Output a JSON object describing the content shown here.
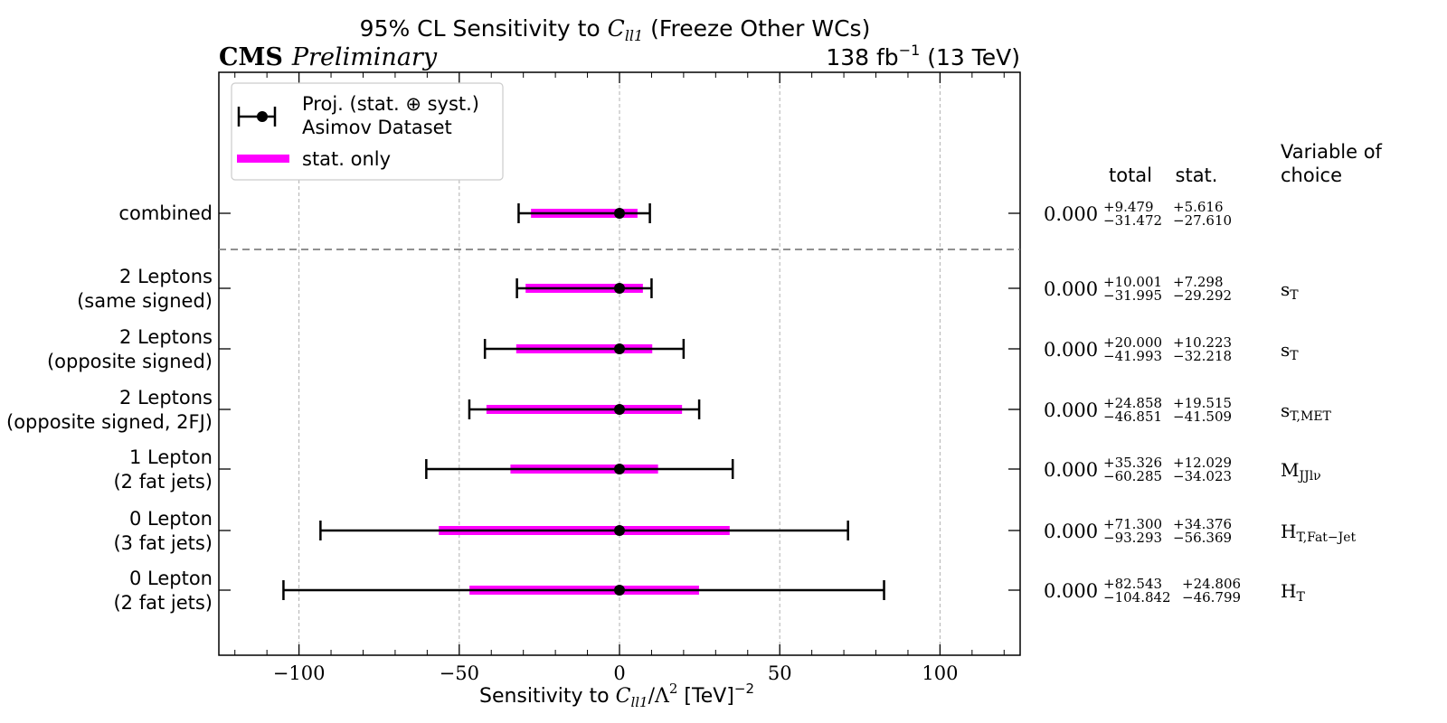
{
  "chart_data": {
    "type": "errorbar",
    "title_pre": "95% CL Sensitivity to ",
    "title_var": "C",
    "title_sub": "ll1",
    "title_post": " (Freeze Other WCs)",
    "experiment": "CMS",
    "status": "Preliminary",
    "lumi_value": "138 fb",
    "lumi_exp": "−1",
    "lumi_energy": " (13 TeV)",
    "xlabel_pre": "Sensitivity to ",
    "xlabel_var": "C",
    "xlabel_sub": "ll1",
    "xlabel_mid": "/Λ",
    "xlabel_exp": "2",
    "xlabel_unit": " [TeV]",
    "xlabel_unit_exp": "−2",
    "xlim": [
      -125,
      125
    ],
    "xticks": [
      -100,
      -50,
      0,
      50,
      100
    ],
    "xtick_labels": [
      "−100",
      "−50",
      "0",
      "50",
      "100"
    ],
    "grid": true,
    "legend": {
      "placement": "top-left",
      "entries": [
        {
          "label_line1": "Proj. (stat. ⊕ syst.)",
          "label_line2": "Asimov Dataset",
          "color": "#000000"
        },
        {
          "label_line1": "stat. only",
          "color": "#ff00ff"
        }
      ]
    },
    "table_headers": {
      "total": "total",
      "stat": "stat.",
      "variable_line1": "Variable of",
      "variable_line2": "choice"
    },
    "rows": [
      {
        "label_line1": "combined",
        "label_line2": "",
        "center": 0.0,
        "center_text": "0.000",
        "total_up": 9.479,
        "total_down": 31.472,
        "stat_up": 5.616,
        "stat_down": 27.61,
        "total_up_text": "+9.479",
        "total_down_text": "−31.472",
        "stat_up_text": "+5.616",
        "stat_down_text": "−27.610",
        "variable": "",
        "variable_sub": ""
      },
      {
        "label_line1": "2 Leptons",
        "label_line2": "(same signed)",
        "center": 0.0,
        "center_text": "0.000",
        "total_up": 10.001,
        "total_down": 31.995,
        "stat_up": 7.298,
        "stat_down": 29.292,
        "total_up_text": "+10.001",
        "total_down_text": "−31.995",
        "stat_up_text": "+7.298",
        "stat_down_text": "−29.292",
        "variable": "s",
        "variable_sub": "T"
      },
      {
        "label_line1": "2 Leptons",
        "label_line2": "(opposite signed)",
        "center": 0.0,
        "center_text": "0.000",
        "total_up": 20.0,
        "total_down": 41.993,
        "stat_up": 10.223,
        "stat_down": 32.218,
        "total_up_text": "+20.000",
        "total_down_text": "−41.993",
        "stat_up_text": "+10.223",
        "stat_down_text": "−32.218",
        "variable": "s",
        "variable_sub": "T"
      },
      {
        "label_line1": "2 Leptons",
        "label_line2": "(opposite signed, 2FJ)",
        "center": 0.0,
        "center_text": "0.000",
        "total_up": 24.858,
        "total_down": 46.851,
        "stat_up": 19.515,
        "stat_down": 41.509,
        "total_up_text": "+24.858",
        "total_down_text": "−46.851",
        "stat_up_text": "+19.515",
        "stat_down_text": "−41.509",
        "variable": "s",
        "variable_sub": "T,MET"
      },
      {
        "label_line1": "1 Lepton",
        "label_line2": "(2 fat jets)",
        "center": 0.0,
        "center_text": "0.000",
        "total_up": 35.326,
        "total_down": 60.285,
        "stat_up": 12.029,
        "stat_down": 34.023,
        "total_up_text": "+35.326",
        "total_down_text": "−60.285",
        "stat_up_text": "+12.029",
        "stat_down_text": "−34.023",
        "variable": "M",
        "variable_sub": "JJlν"
      },
      {
        "label_line1": "0 Lepton",
        "label_line2": "(3 fat jets)",
        "center": 0.0,
        "center_text": "0.000",
        "total_up": 71.3,
        "total_down": 93.293,
        "stat_up": 34.376,
        "stat_down": 56.369,
        "total_up_text": "+71.300",
        "total_down_text": "−93.293",
        "stat_up_text": "+34.376",
        "stat_down_text": "−56.369",
        "variable": "H",
        "variable_sub": "T,Fat−Jet"
      },
      {
        "label_line1": "0 Lepton",
        "label_line2": "(2 fat jets)",
        "center": 0.0,
        "center_text": "0.000",
        "total_up": 82.543,
        "total_down": 104.842,
        "stat_up": 24.806,
        "stat_down": 46.799,
        "total_up_text": "+82.543",
        "total_down_text": "−104.842",
        "stat_up_text": "+24.806",
        "stat_down_text": "−46.799",
        "variable": "H",
        "variable_sub": "T"
      }
    ]
  }
}
